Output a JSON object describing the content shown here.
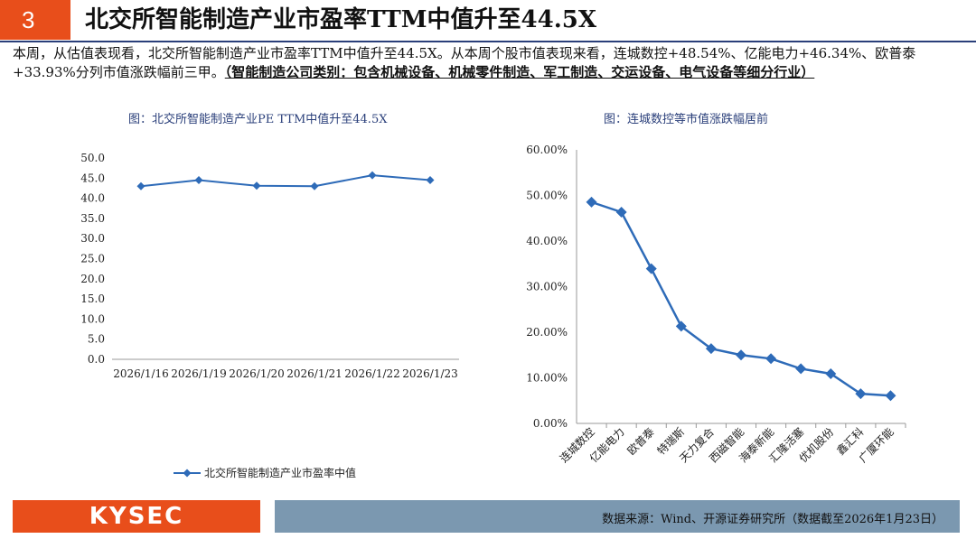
{
  "header": {
    "number": "3",
    "title": "北交所智能制造产业市盈率TTM中值升至44.5X"
  },
  "summary": {
    "text": "本周，从估值表现看，北交所智能制造产业市盈率TTM中值升至44.5X。从本周个股市值表现来看，连城数控+48.54%、亿能电力+46.34%、欧普泰+33.93%分列市值涨跌幅前三甲。",
    "note": "（智能制造公司类别：包含机械设备、机械零件制造、军工制造、交运设备、电气设备等细分行业）"
  },
  "left_chart_title": "图：北交所智能制造产业PE TTM中值升至44.5X",
  "right_chart_title": "图：连城数控等市值涨跌幅居前",
  "chart_data": [
    {
      "type": "line",
      "x": [
        "2026/1/16",
        "2026/1/19",
        "2026/1/20",
        "2026/1/21",
        "2026/1/22",
        "2026/1/23"
      ],
      "series": [
        {
          "name": "北交所智能制造产业市盈率中值",
          "values": [
            43.0,
            44.5,
            43.1,
            43.0,
            45.7,
            44.5
          ]
        }
      ],
      "ylim": [
        0,
        50
      ],
      "yticks": [
        "50.0",
        "45.0",
        "40.0",
        "35.0",
        "30.0",
        "25.0",
        "20.0",
        "15.0",
        "10.0",
        "5.0",
        "0.0"
      ],
      "legend": "bottom",
      "color": "#2e6bb8"
    },
    {
      "type": "line",
      "x": [
        "连城数控",
        "亿能电力",
        "欧普泰",
        "特瑞斯",
        "天力复合",
        "西磁智能",
        "海泰新能",
        "汇隆活塞",
        "优机股份",
        "鑫汇科",
        "广厦环能"
      ],
      "series": [
        {
          "values": [
            48.54,
            46.34,
            33.93,
            21.3,
            16.4,
            15.0,
            14.2,
            12.0,
            10.9,
            6.5,
            6.1
          ]
        }
      ],
      "ylim": [
        0,
        60
      ],
      "yticks": [
        "60.00%",
        "50.00%",
        "40.00%",
        "30.00%",
        "20.00%",
        "10.00%",
        "0.00%"
      ],
      "color": "#2e6bb8"
    }
  ],
  "footer": {
    "logo": "KYSEC",
    "source": "数据来源：Wind、开源证券研究所（数据截至2026年1月23日）"
  },
  "colors": {
    "accent": "#e84e1b",
    "navy": "#2a3f7a",
    "footer_bar": "#7b98b0",
    "series": "#2e6bb8"
  }
}
